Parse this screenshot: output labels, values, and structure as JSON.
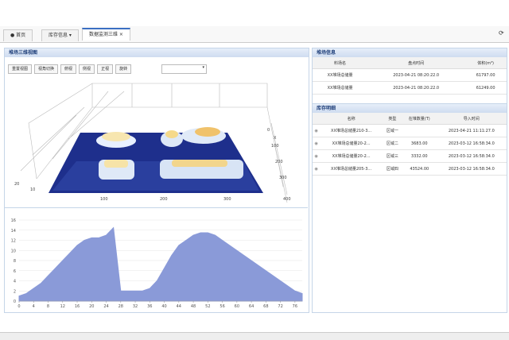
{
  "tabs": [
    "首页",
    "库存信息",
    "数据监测三维"
  ],
  "left_panel": {
    "title": "堆场三维视图",
    "toolbar": [
      "重置视图",
      "视角切换",
      "俯视",
      "侧视",
      "正视",
      "旋转"
    ],
    "view3d": {
      "x_labels": [
        "100",
        "200",
        "300",
        "400"
      ],
      "y_labels": [
        "10",
        "20"
      ],
      "z_labels": [
        "0",
        "100",
        "200",
        "300"
      ],
      "axis_label": "X"
    }
  },
  "chart_data": {
    "type": "area",
    "color": "#8a9ad8",
    "x": [
      0,
      2,
      4,
      6,
      8,
      10,
      12,
      14,
      16,
      18,
      20,
      22,
      24,
      26,
      28,
      30,
      32,
      34,
      36,
      38,
      40,
      42,
      44,
      46,
      48,
      50,
      52,
      54,
      56,
      58,
      60,
      62,
      64,
      66,
      68,
      70,
      72,
      74,
      76,
      78
    ],
    "values": [
      1,
      1.5,
      2.5,
      3.5,
      5,
      6.5,
      8,
      9.5,
      11,
      12,
      12.5,
      12.5,
      13,
      14.5,
      2,
      2,
      2,
      2,
      2.5,
      4,
      6.5,
      9,
      11,
      12,
      13,
      13.5,
      13.5,
      13,
      12,
      11,
      10,
      9,
      8,
      7,
      6,
      5,
      4,
      3,
      2,
      1.5
    ],
    "xlim": [
      0,
      78
    ],
    "xticks": [
      0,
      4,
      8,
      12,
      16,
      20,
      24,
      28,
      32,
      36,
      40,
      44,
      48,
      52,
      56,
      60,
      64,
      68,
      72,
      76
    ],
    "ylim": [
      0,
      16
    ],
    "yticks": [
      0,
      2,
      4,
      6,
      8,
      10,
      12,
      14,
      16
    ],
    "grid": true
  },
  "stock_info": {
    "title": "堆场信息",
    "columns": [
      "料场名",
      "盘点时间",
      "体积(m³)"
    ],
    "rows": [
      [
        "XX堆场总储量",
        "2023-04-21 08:20:22.0",
        "61797.00"
      ],
      [
        "XX堆场总储量",
        "2023-04-21 08:20:22.0",
        "61249.00"
      ]
    ]
  },
  "stock_detail": {
    "title": "库存明细",
    "columns": [
      "名称",
      "类型",
      "在堆数量(T)",
      "导入时间"
    ],
    "rows": [
      [
        "XX堆场总储量210-3...",
        "区域一",
        null,
        "2023-04-21 11:11:27.0"
      ],
      [
        "XX堆场总储量20-2...",
        "区域二",
        "3683.00",
        "2023-03-12 16:58:34.0"
      ],
      [
        "XX堆场总储量20-2...",
        "区域三",
        "3332.00",
        "2023-03-12 16:58:34.0"
      ],
      [
        "XX堆场总储量205-3...",
        "区域四",
        "43524.00",
        "2023-03-12 16:58:34.0"
      ]
    ]
  }
}
